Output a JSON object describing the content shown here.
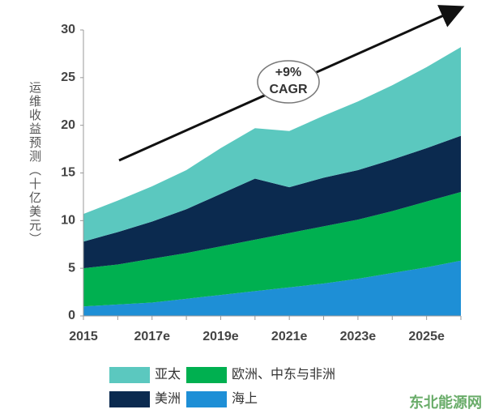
{
  "chart_data": {
    "type": "stacked_area",
    "y_label": "运维收益预测（十亿美元）",
    "annotation": [
      "+9%",
      "CAGR"
    ],
    "watermark": "东北能源网",
    "categories": [
      "2015",
      null,
      "2017e",
      null,
      "2019e",
      null,
      "2021e",
      null,
      "2023e",
      null,
      "2025e",
      null
    ],
    "series": [
      {
        "name": "海上",
        "color": "#1e8fd6",
        "values": [
          1.0,
          1.2,
          1.4,
          1.8,
          2.2,
          2.6,
          3.0,
          3.4,
          3.9,
          4.5,
          5.1,
          5.8
        ]
      },
      {
        "name": "欧洲、中东与非洲",
        "color": "#00b050",
        "values": [
          4.0,
          4.2,
          4.6,
          4.8,
          5.1,
          5.4,
          5.7,
          6.0,
          6.2,
          6.5,
          6.9,
          7.2
        ]
      },
      {
        "name": "美洲",
        "color": "#0b2a4f",
        "values": [
          2.8,
          3.4,
          3.9,
          4.6,
          5.5,
          6.4,
          4.8,
          5.1,
          5.2,
          5.4,
          5.6,
          5.9
        ]
      },
      {
        "name": "亚太",
        "color": "#5bc8bf",
        "values": [
          2.9,
          3.3,
          3.7,
          4.1,
          4.8,
          5.3,
          5.9,
          6.5,
          7.2,
          7.8,
          8.5,
          9.3
        ]
      }
    ],
    "ylim": [
      0,
      30
    ],
    "yticks": [
      0,
      5,
      10,
      15,
      20,
      25,
      30
    ],
    "grid": false
  }
}
